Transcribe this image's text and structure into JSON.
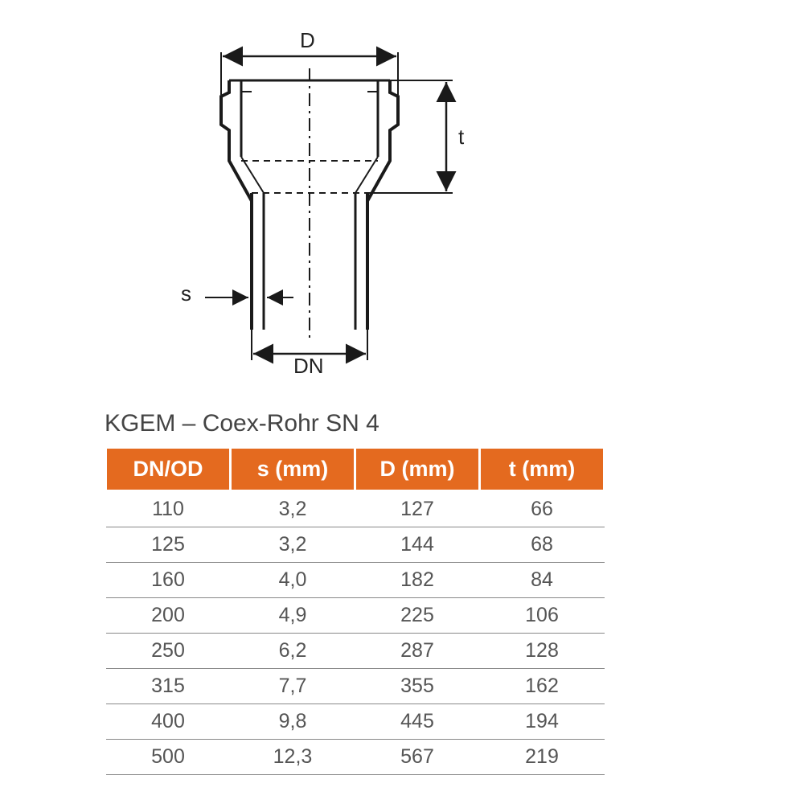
{
  "diagram": {
    "labels": {
      "D": "D",
      "t": "t",
      "s": "s",
      "DN": "DN"
    },
    "stroke_color": "#1a1a1a",
    "stroke_width_main": 4,
    "stroke_width_dim": 2,
    "arrow_size": 10
  },
  "table": {
    "title": "KGEM – Coex-Rohr SN 4",
    "header_bg": "#e46a1f",
    "header_fg": "#ffffff",
    "columns": [
      "DN/OD",
      "s (mm)",
      "D (mm)",
      "t (mm)"
    ],
    "rows": [
      [
        "110",
        "3,2",
        "127",
        "66"
      ],
      [
        "125",
        "3,2",
        "144",
        "68"
      ],
      [
        "160",
        "4,0",
        "182",
        "84"
      ],
      [
        "200",
        "4,9",
        "225",
        "106"
      ],
      [
        "250",
        "6,2",
        "287",
        "128"
      ],
      [
        "315",
        "7,7",
        "355",
        "162"
      ],
      [
        "400",
        "9,8",
        "445",
        "194"
      ],
      [
        "500",
        "12,3",
        "567",
        "219"
      ]
    ],
    "row_border_color": "#888888",
    "cell_color": "#555555",
    "title_fontsize": 30,
    "header_fontsize": 27,
    "cell_fontsize": 25
  }
}
